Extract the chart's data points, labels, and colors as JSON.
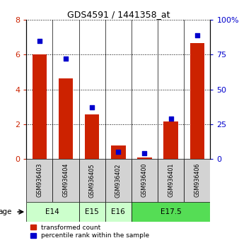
{
  "title": "GDS4591 / 1441358_at",
  "samples": [
    "GSM936403",
    "GSM936404",
    "GSM936405",
    "GSM936402",
    "GSM936400",
    "GSM936401",
    "GSM936406"
  ],
  "transformed_count": [
    6.0,
    4.65,
    2.55,
    0.75,
    0.05,
    2.15,
    6.65
  ],
  "percentile_rank": [
    85,
    72,
    37,
    5,
    4,
    29,
    89
  ],
  "ylim_left": [
    0,
    8
  ],
  "ylim_right": [
    0,
    100
  ],
  "yticks_left": [
    0,
    2,
    4,
    6,
    8
  ],
  "yticks_right": [
    0,
    25,
    50,
    75,
    100
  ],
  "age_groups": [
    {
      "label": "E14",
      "spans": [
        0,
        1
      ],
      "color": "#ccffcc"
    },
    {
      "label": "E15",
      "spans": [
        2,
        2
      ],
      "color": "#ccffcc"
    },
    {
      "label": "E16",
      "spans": [
        3,
        3
      ],
      "color": "#ccffcc"
    },
    {
      "label": "E17.5",
      "spans": [
        4,
        6
      ],
      "color": "#55dd55"
    }
  ],
  "bar_color": "#cc2200",
  "scatter_color": "#0000cc",
  "bar_width": 0.55,
  "background_color": "#ffffff",
  "tick_color_left": "#cc2200",
  "tick_color_right": "#0000cc",
  "sample_bg_color": "#d3d3d3",
  "legend_items": [
    {
      "color": "#cc2200",
      "label": "transformed count"
    },
    {
      "color": "#0000cc",
      "label": "percentile rank within the sample"
    }
  ]
}
